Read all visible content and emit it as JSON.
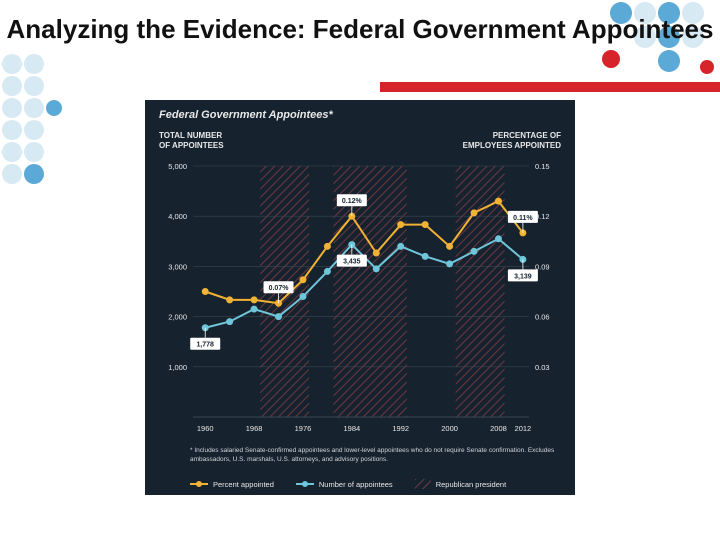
{
  "title": "Analyzing the Evidence: Federal Government Appointees",
  "chart": {
    "panel_title": "Federal Government Appointees*",
    "left_axis_label_l1": "TOTAL NUMBER",
    "left_axis_label_l2": "OF APPOINTEES",
    "right_axis_label_l1": "PERCENTAGE OF",
    "right_axis_label_l2": "EMPLOYEES APPOINTED",
    "background_color": "#16222e",
    "plot_bg": "#16222e",
    "grid_color": "#3a4650",
    "axis_text_color": "#e8e8e8",
    "font_family": "Arial",
    "title_fontsize": 11,
    "axis_label_fontsize": 8,
    "tick_fontsize": 7.5,
    "x_ticks": [
      1960,
      1968,
      1976,
      1984,
      1992,
      2000,
      2008,
      2012
    ],
    "xlim": [
      1958,
      2013
    ],
    "left_ylim": [
      0,
      5000
    ],
    "left_yticks": [
      1000,
      2000,
      3000,
      4000,
      5000
    ],
    "right_ylim": [
      0,
      0.15
    ],
    "right_yticks": [
      0.03,
      0.06,
      0.09,
      0.12,
      0.15
    ],
    "series_appointees": {
      "color": "#6fc5d9",
      "line_width": 2,
      "marker": "circle",
      "marker_size": 3.5,
      "x": [
        1960,
        1964,
        1968,
        1972,
        1976,
        1980,
        1984,
        1988,
        1992,
        1996,
        2000,
        2004,
        2008,
        2012
      ],
      "y": [
        1778,
        1900,
        2150,
        2000,
        2400,
        2900,
        3435,
        2950,
        3400,
        3200,
        3050,
        3300,
        3550,
        3139
      ]
    },
    "series_percent": {
      "color": "#f2b233",
      "line_width": 2,
      "marker": "circle",
      "marker_size": 3.5,
      "x": [
        1960,
        1964,
        1968,
        1972,
        1976,
        1980,
        1984,
        1988,
        1992,
        1996,
        2000,
        2004,
        2008,
        2012
      ],
      "y": [
        0.075,
        0.07,
        0.07,
        0.068,
        0.082,
        0.102,
        0.12,
        0.098,
        0.115,
        0.115,
        0.102,
        0.122,
        0.129,
        0.11
      ]
    },
    "republican_bands": [
      {
        "start": 1969,
        "end": 1977
      },
      {
        "start": 1981,
        "end": 1993
      },
      {
        "start": 2001,
        "end": 2009
      }
    ],
    "band_hatch_color": "#b84a50",
    "band_hatch_opacity": 0.55,
    "callouts": [
      {
        "x": 1960,
        "series": "appointees",
        "label": "1,778"
      },
      {
        "x": 1972,
        "series": "percent",
        "label": "0.07%"
      },
      {
        "x": 1984,
        "series": "percent",
        "label": "0.12%"
      },
      {
        "x": 1984,
        "series": "appointees",
        "label": "3,435"
      },
      {
        "x": 2012,
        "series": "percent",
        "label": "0.11%"
      },
      {
        "x": 2012,
        "series": "appointees",
        "label": "3,139"
      }
    ],
    "callout_bg": "#ffffff",
    "callout_text": "#16222e",
    "callout_fontsize": 7
  },
  "footnote": "* Includes salaried Senate-confirmed appointees and lower-level appointees who do not require Senate confirmation. Excludes ambassadors, U.S. marshals, U.S. attorneys, and advisory positions.",
  "legend": {
    "percent": "Percent appointed",
    "appointees": "Number of appointees",
    "band": "Republican president"
  },
  "deco": {
    "dot_blue": "#5aa9d6",
    "dot_red": "#d7242a",
    "dot_light": "#d7e9f2",
    "red_bar_color": "#d7242a"
  }
}
